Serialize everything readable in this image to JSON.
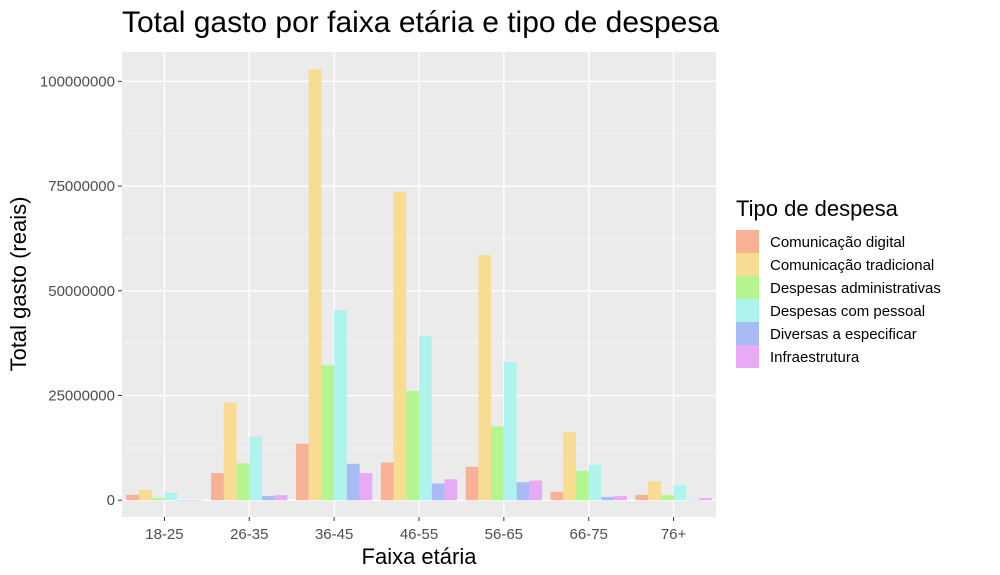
{
  "chart_data": {
    "type": "bar",
    "title": "Total gasto por faixa etária e tipo de despesa",
    "xlabel": "Faixa etária",
    "ylabel": "Total gasto (reais)",
    "categories": [
      "18-25",
      "26-35",
      "36-45",
      "46-55",
      "56-65",
      "66-75",
      "76+"
    ],
    "ylim": [
      -4000000,
      107000000
    ],
    "yticks": [
      0,
      25000000,
      50000000,
      75000000,
      100000000
    ],
    "ytick_labels": [
      "0",
      "25000000",
      "50000000",
      "75000000",
      "100000000"
    ],
    "grid": true,
    "legend": {
      "title": "Tipo de despesa",
      "position": "right"
    },
    "series": [
      {
        "name": "Comunicação digital",
        "color": "#F8B195",
        "values": [
          1300000,
          6500000,
          13500000,
          9000000,
          8000000,
          2000000,
          1300000
        ]
      },
      {
        "name": "Comunicação tradicional",
        "color": "#F7DC91",
        "values": [
          2500000,
          23300000,
          102800000,
          73600000,
          58500000,
          16300000,
          4500000
        ]
      },
      {
        "name": "Despesas administrativas",
        "color": "#B4F58F",
        "values": [
          500000,
          8800000,
          32200000,
          26100000,
          17600000,
          7000000,
          1200000
        ]
      },
      {
        "name": "Despesas com pessoal",
        "color": "#AFF3EE",
        "values": [
          1800000,
          15200000,
          45400000,
          39200000,
          33000000,
          8500000,
          3700000
        ]
      },
      {
        "name": "Diversas a especificar",
        "color": "#A9BBF5",
        "values": [
          50000,
          1000000,
          8700000,
          4000000,
          4300000,
          800000,
          100000
        ]
      },
      {
        "name": "Infraestrutura",
        "color": "#E8A9F5",
        "values": [
          50000,
          1200000,
          6500000,
          5000000,
          4700000,
          1000000,
          500000
        ]
      }
    ]
  }
}
